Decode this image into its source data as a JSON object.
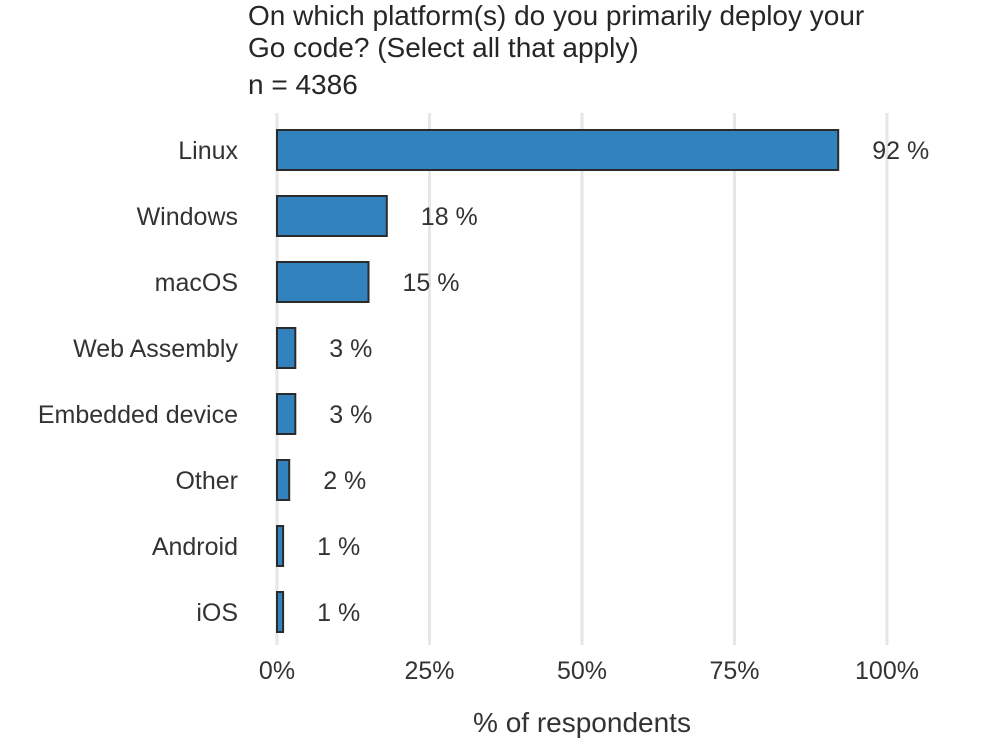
{
  "chart_data": {
    "type": "bar",
    "orientation": "horizontal",
    "title_lines": [
      "On which platform(s) do you primarily deploy your",
      "Go code? (Select all that apply)"
    ],
    "subtitle": "n =  4386",
    "categories": [
      "Linux",
      "Windows",
      "macOS",
      "Web Assembly",
      "Embedded device",
      "Other",
      "Android",
      "iOS"
    ],
    "values": [
      92,
      18,
      15,
      3,
      3,
      2,
      1,
      1
    ],
    "value_labels": [
      "92 %",
      "18 %",
      "15 %",
      "3 %",
      "3 %",
      "2 %",
      "1 %",
      "1 %"
    ],
    "xlabel": "% of respondents",
    "ylabel": "",
    "xlim": [
      0,
      100
    ],
    "xticks": [
      0,
      25,
      50,
      75,
      100
    ],
    "xtick_labels": [
      "0%",
      "25%",
      "50%",
      "75%",
      "100%"
    ],
    "grid": "vertical",
    "legend": "none",
    "colors": {
      "bar_fill": "#3182bd",
      "bar_stroke": "#2b2b2b",
      "grid": "#e6e6e6",
      "text": "#333333"
    }
  }
}
